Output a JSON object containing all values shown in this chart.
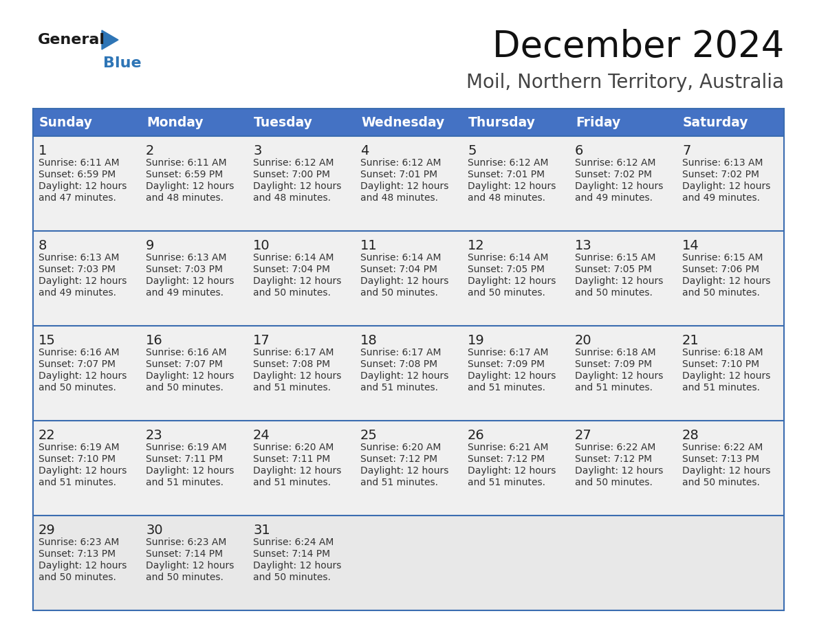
{
  "title": "December 2024",
  "subtitle": "Moil, Northern Territory, Australia",
  "header_color": "#4472C4",
  "header_text_color": "#FFFFFF",
  "cell_bg_color": "#F0F0F0",
  "last_row_bg_color": "#E8E8E8",
  "border_color": "#3A6CB0",
  "day_names": [
    "Sunday",
    "Monday",
    "Tuesday",
    "Wednesday",
    "Thursday",
    "Friday",
    "Saturday"
  ],
  "weeks": [
    [
      {
        "day": 1,
        "sunrise": "6:11 AM",
        "sunset": "6:59 PM",
        "daylight": "12 hours\nand 47 minutes."
      },
      {
        "day": 2,
        "sunrise": "6:11 AM",
        "sunset": "6:59 PM",
        "daylight": "12 hours\nand 48 minutes."
      },
      {
        "day": 3,
        "sunrise": "6:12 AM",
        "sunset": "7:00 PM",
        "daylight": "12 hours\nand 48 minutes."
      },
      {
        "day": 4,
        "sunrise": "6:12 AM",
        "sunset": "7:01 PM",
        "daylight": "12 hours\nand 48 minutes."
      },
      {
        "day": 5,
        "sunrise": "6:12 AM",
        "sunset": "7:01 PM",
        "daylight": "12 hours\nand 48 minutes."
      },
      {
        "day": 6,
        "sunrise": "6:12 AM",
        "sunset": "7:02 PM",
        "daylight": "12 hours\nand 49 minutes."
      },
      {
        "day": 7,
        "sunrise": "6:13 AM",
        "sunset": "7:02 PM",
        "daylight": "12 hours\nand 49 minutes."
      }
    ],
    [
      {
        "day": 8,
        "sunrise": "6:13 AM",
        "sunset": "7:03 PM",
        "daylight": "12 hours\nand 49 minutes."
      },
      {
        "day": 9,
        "sunrise": "6:13 AM",
        "sunset": "7:03 PM",
        "daylight": "12 hours\nand 49 minutes."
      },
      {
        "day": 10,
        "sunrise": "6:14 AM",
        "sunset": "7:04 PM",
        "daylight": "12 hours\nand 50 minutes."
      },
      {
        "day": 11,
        "sunrise": "6:14 AM",
        "sunset": "7:04 PM",
        "daylight": "12 hours\nand 50 minutes."
      },
      {
        "day": 12,
        "sunrise": "6:14 AM",
        "sunset": "7:05 PM",
        "daylight": "12 hours\nand 50 minutes."
      },
      {
        "day": 13,
        "sunrise": "6:15 AM",
        "sunset": "7:05 PM",
        "daylight": "12 hours\nand 50 minutes."
      },
      {
        "day": 14,
        "sunrise": "6:15 AM",
        "sunset": "7:06 PM",
        "daylight": "12 hours\nand 50 minutes."
      }
    ],
    [
      {
        "day": 15,
        "sunrise": "6:16 AM",
        "sunset": "7:07 PM",
        "daylight": "12 hours\nand 50 minutes."
      },
      {
        "day": 16,
        "sunrise": "6:16 AM",
        "sunset": "7:07 PM",
        "daylight": "12 hours\nand 50 minutes."
      },
      {
        "day": 17,
        "sunrise": "6:17 AM",
        "sunset": "7:08 PM",
        "daylight": "12 hours\nand 51 minutes."
      },
      {
        "day": 18,
        "sunrise": "6:17 AM",
        "sunset": "7:08 PM",
        "daylight": "12 hours\nand 51 minutes."
      },
      {
        "day": 19,
        "sunrise": "6:17 AM",
        "sunset": "7:09 PM",
        "daylight": "12 hours\nand 51 minutes."
      },
      {
        "day": 20,
        "sunrise": "6:18 AM",
        "sunset": "7:09 PM",
        "daylight": "12 hours\nand 51 minutes."
      },
      {
        "day": 21,
        "sunrise": "6:18 AM",
        "sunset": "7:10 PM",
        "daylight": "12 hours\nand 51 minutes."
      }
    ],
    [
      {
        "day": 22,
        "sunrise": "6:19 AM",
        "sunset": "7:10 PM",
        "daylight": "12 hours\nand 51 minutes."
      },
      {
        "day": 23,
        "sunrise": "6:19 AM",
        "sunset": "7:11 PM",
        "daylight": "12 hours\nand 51 minutes."
      },
      {
        "day": 24,
        "sunrise": "6:20 AM",
        "sunset": "7:11 PM",
        "daylight": "12 hours\nand 51 minutes."
      },
      {
        "day": 25,
        "sunrise": "6:20 AM",
        "sunset": "7:12 PM",
        "daylight": "12 hours\nand 51 minutes."
      },
      {
        "day": 26,
        "sunrise": "6:21 AM",
        "sunset": "7:12 PM",
        "daylight": "12 hours\nand 51 minutes."
      },
      {
        "day": 27,
        "sunrise": "6:22 AM",
        "sunset": "7:12 PM",
        "daylight": "12 hours\nand 50 minutes."
      },
      {
        "day": 28,
        "sunrise": "6:22 AM",
        "sunset": "7:13 PM",
        "daylight": "12 hours\nand 50 minutes."
      }
    ],
    [
      {
        "day": 29,
        "sunrise": "6:23 AM",
        "sunset": "7:13 PM",
        "daylight": "12 hours\nand 50 minutes."
      },
      {
        "day": 30,
        "sunrise": "6:23 AM",
        "sunset": "7:14 PM",
        "daylight": "12 hours\nand 50 minutes."
      },
      {
        "day": 31,
        "sunrise": "6:24 AM",
        "sunset": "7:14 PM",
        "daylight": "12 hours\nand 50 minutes."
      },
      null,
      null,
      null,
      null
    ]
  ],
  "logo_general_color": "#1a1a1a",
  "logo_blue_color": "#2E75B6",
  "title_fontsize": 38,
  "subtitle_fontsize": 20,
  "header_fontsize": 13.5,
  "day_num_fontsize": 14,
  "cell_text_fontsize": 10
}
